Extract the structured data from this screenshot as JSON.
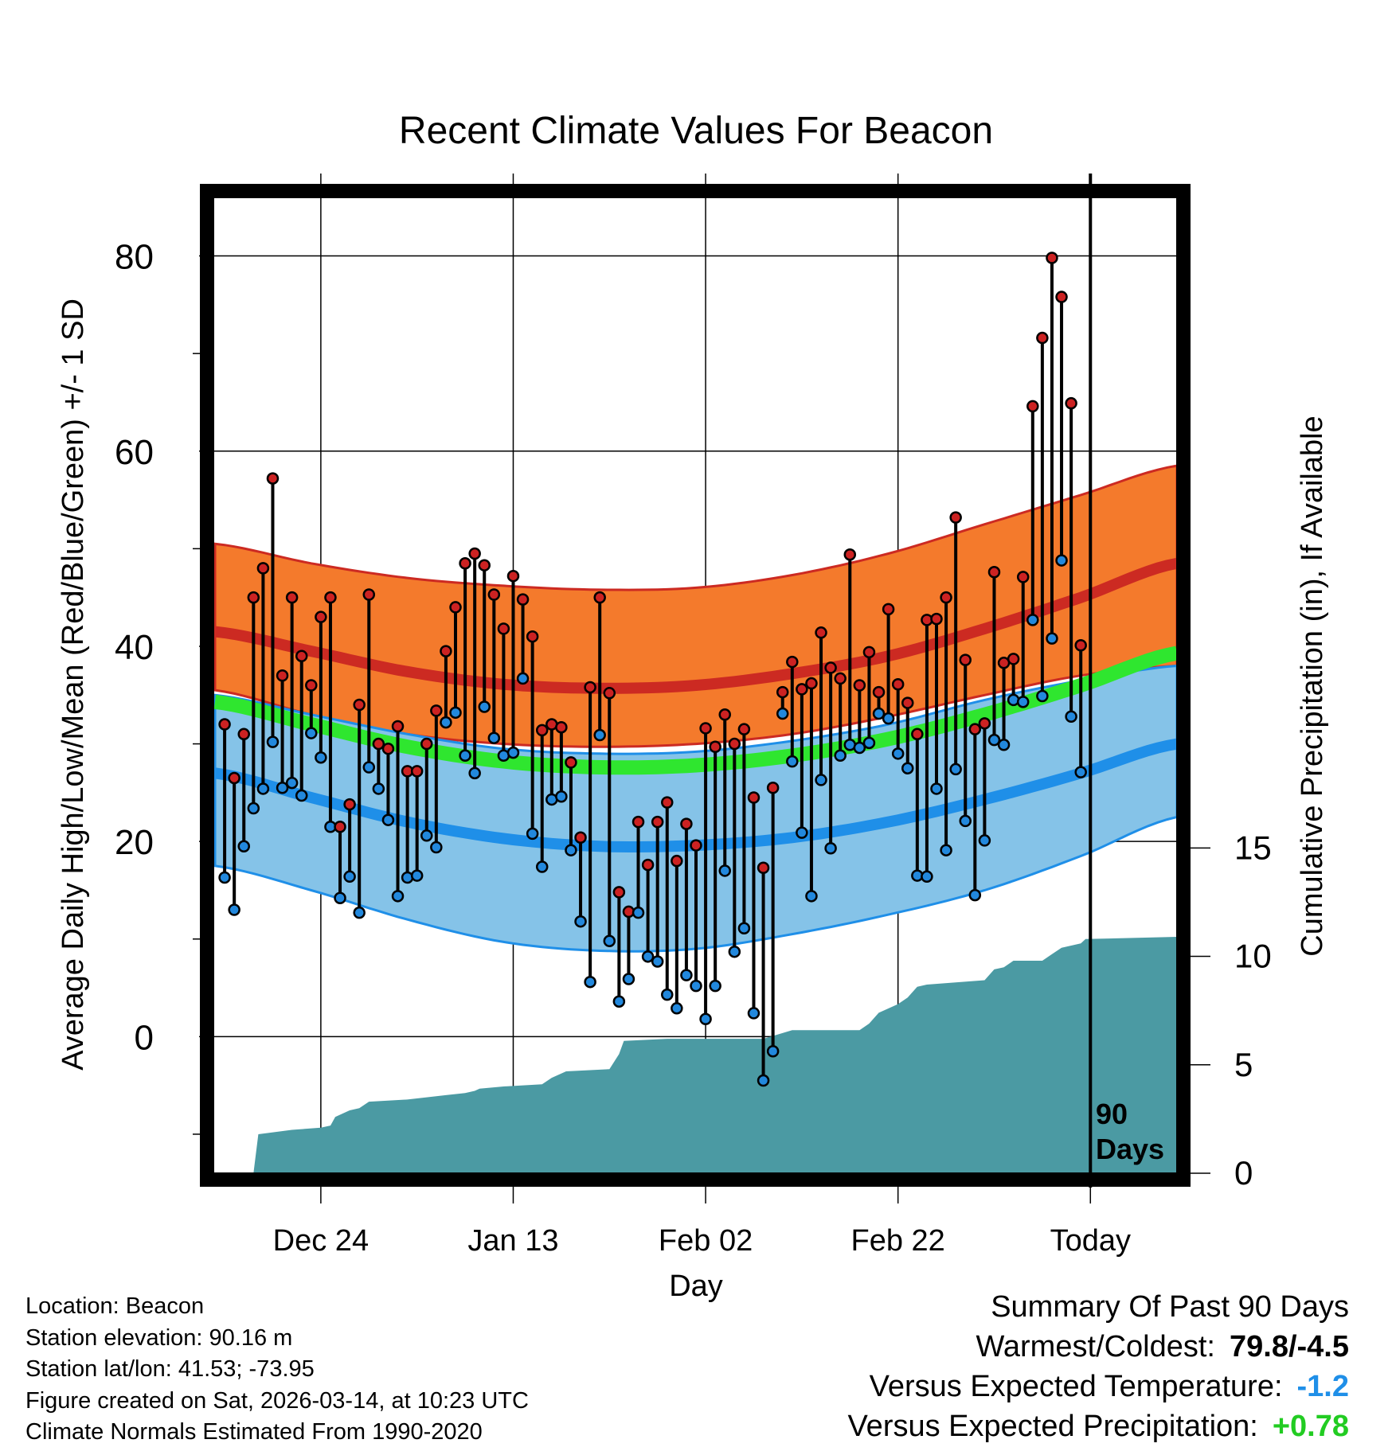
{
  "chart_data": {
    "type": "line",
    "title": "Recent Climate Values For Beacon",
    "xlabel": "Day",
    "ylabel": "Average Daily High/Low/Mean (Red/Blue/Green) +/- 1 SD",
    "y2label": "Cumulative Precipitation (in), If Available",
    "x_ticks": [
      {
        "day": 11,
        "label": "Dec 24"
      },
      {
        "day": 31,
        "label": "Jan 13"
      },
      {
        "day": 51,
        "label": "Feb 02"
      },
      {
        "day": 71,
        "label": "Feb 22"
      },
      {
        "day": 91,
        "label": "Today"
      }
    ],
    "xlim": [
      0,
      100
    ],
    "ylim": [
      -14,
      86
    ],
    "y_ticks": [
      0,
      20,
      40,
      60,
      80
    ],
    "y2lim": [
      0,
      45
    ],
    "y2_ticks": [
      0,
      5,
      10,
      15
    ],
    "today_marker": {
      "day": 91,
      "label_line1": "90",
      "label_line2": "Days"
    },
    "normals": {
      "days": [
        0,
        10,
        20,
        30,
        40,
        50,
        60,
        70,
        80,
        90,
        100
      ],
      "high_mean": [
        41.5,
        39.5,
        37.4,
        36.1,
        35.7,
        36.0,
        37.2,
        39.0,
        41.8,
        45.0,
        48.5
      ],
      "high_sd_upper": [
        50.5,
        48.5,
        47.0,
        46.2,
        45.8,
        46.0,
        47.3,
        49.5,
        52.5,
        55.5,
        58.5
      ],
      "high_sd_lower": [
        35.5,
        33.0,
        31.0,
        30.0,
        29.7,
        30.0,
        31.0,
        32.8,
        35.0,
        37.0,
        38.0
      ],
      "low_mean": [
        27.0,
        24.5,
        22.0,
        20.3,
        19.5,
        19.6,
        20.4,
        22.0,
        24.3,
        27.0,
        30.0
      ],
      "low_sd_upper": [
        35.0,
        33.0,
        31.0,
        29.5,
        29.0,
        29.2,
        30.3,
        32.0,
        34.5,
        36.5,
        38.0
      ],
      "low_sd_lower": [
        17.5,
        15.0,
        12.0,
        9.7,
        8.8,
        9.0,
        10.5,
        12.5,
        15.0,
        18.5,
        22.5
      ],
      "mean": [
        34.3,
        32.0,
        29.7,
        28.2,
        27.6,
        27.8,
        28.8,
        30.5,
        33.0,
        36.0,
        39.3
      ]
    },
    "series": [
      {
        "name": "Daily High",
        "color": "#cc2222",
        "values": [
          32,
          26.5,
          31,
          45,
          48,
          57.2,
          37,
          45,
          39,
          36,
          43,
          45,
          21.5,
          23.8,
          34,
          45.3,
          30,
          29.5,
          31.8,
          27.2,
          27.2,
          30,
          33.4,
          39.5,
          44,
          48.5,
          49.5,
          48.3,
          45.3,
          41.8,
          47.2,
          44.8,
          41,
          31.4,
          32,
          31.7,
          28.1,
          20.4,
          35.8,
          45,
          35.2,
          14.8,
          12.8,
          22,
          17.6,
          22,
          24,
          18,
          21.8,
          19.6,
          31.6,
          29.7,
          33,
          30,
          31.5,
          24.5,
          17.3,
          25.5,
          35.3,
          38.4,
          35.6,
          36.2,
          41.4,
          37.8,
          36.7,
          49.4,
          36,
          39.4,
          35.3,
          43.8,
          36.1,
          34.2,
          31,
          42.7,
          42.8,
          45,
          53.2,
          38.6,
          31.5,
          32.1,
          47.6,
          38.3,
          38.7,
          47.1,
          64.6,
          71.6,
          79.8,
          75.8,
          64.9,
          40.1
        ]
      },
      {
        "name": "Daily Low",
        "color": "#2288dd",
        "values": [
          16.3,
          13,
          19.5,
          23.4,
          25.4,
          30.2,
          25.5,
          26,
          24.7,
          31.1,
          28.6,
          21.5,
          14.2,
          16.4,
          12.7,
          27.6,
          25.4,
          22.2,
          14.4,
          16.3,
          16.5,
          20.6,
          19.4,
          32.2,
          33.2,
          28.8,
          27,
          33.8,
          30.6,
          28.8,
          29.1,
          36.7,
          20.8,
          17.4,
          24.3,
          24.6,
          19.1,
          11.8,
          5.6,
          30.9,
          9.8,
          3.6,
          5.9,
          12.7,
          8.2,
          7.7,
          4.3,
          2.9,
          6.3,
          5.2,
          1.8,
          5.2,
          17,
          8.7,
          11.1,
          2.4,
          -4.5,
          -1.5,
          33.1,
          28.2,
          20.9,
          14.4,
          26.3,
          19.3,
          28.8,
          29.9,
          29.6,
          30.1,
          33.1,
          32.6,
          29,
          27.5,
          16.5,
          16.4,
          25.4,
          19.1,
          27.4,
          22.1,
          14.5,
          20.1,
          30.4,
          29.9,
          34.5,
          34.3,
          42.7,
          34.9,
          40.8,
          48.8,
          32.8,
          27.1
        ]
      }
    ],
    "precip_cumulative": {
      "days": [
        0,
        4,
        4.5,
        8,
        11,
        12,
        12.5,
        14,
        15,
        16,
        20,
        22,
        24,
        26,
        27,
        27.5,
        30,
        34,
        35,
        36.5,
        41,
        42,
        42.5,
        47,
        52,
        57,
        60,
        67,
        68,
        69,
        71,
        72,
        73,
        74,
        80,
        81,
        82,
        83,
        86,
        87,
        88,
        90,
        90.5,
        100
      ],
      "values": [
        0,
        0,
        1.8,
        2.0,
        2.1,
        2.2,
        2.6,
        2.9,
        3.0,
        3.3,
        3.4,
        3.5,
        3.6,
        3.7,
        3.8,
        3.9,
        4.0,
        4.1,
        4.4,
        4.7,
        4.8,
        5.5,
        6.1,
        6.2,
        6.2,
        6.2,
        6.6,
        6.6,
        6.9,
        7.4,
        7.8,
        8.1,
        8.6,
        8.7,
        8.9,
        9.4,
        9.5,
        9.8,
        9.8,
        10.1,
        10.4,
        10.6,
        10.8,
        10.9
      ],
      "color": "#4b9aa3"
    }
  },
  "location": {
    "label_line": "Location: Beacon",
    "elevation_line": "Station elevation: 90.16 m",
    "latlon_line": "Station lat/lon: 41.53; -73.95",
    "created_line": "Figure created on Sat, 2026-03-14, at 10:23 UTC",
    "normals_line": "Climate Normals Estimated From 1990-2020"
  },
  "summary": {
    "title": "Summary Of Past 90 Days",
    "warm_cold_label": "Warmest/Coldest:",
    "warm_cold_value": "79.8/-4.5",
    "temp_label": "Versus Expected Temperature:",
    "temp_value": "-1.2",
    "temp_color": "#1f8fe8",
    "precip_label": "Versus Expected Precipitation:",
    "precip_value": "+0.78",
    "precip_color": "#22cc22"
  },
  "colors": {
    "high_band": "#f47a2c",
    "high_line": "#cc2a22",
    "mean_band": "#8b1a1a",
    "low_band": "#85c3e8",
    "low_line": "#1f8fe8",
    "mean_line": "#2fe62f"
  }
}
